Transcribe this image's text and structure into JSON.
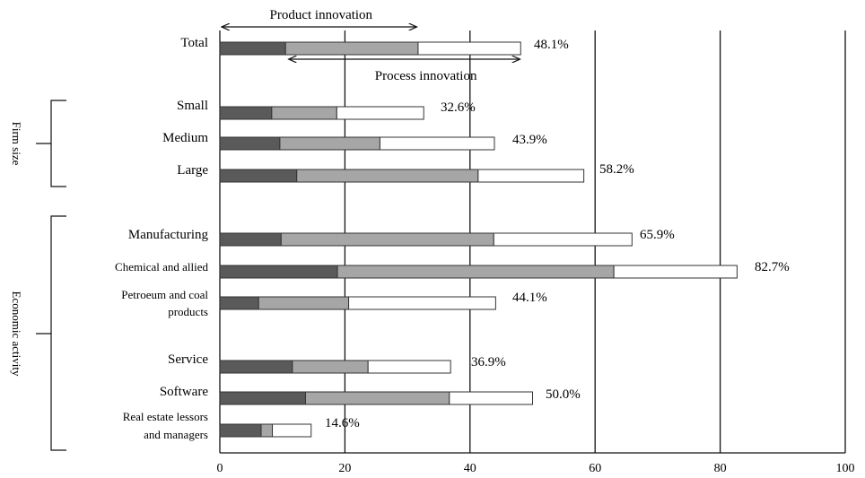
{
  "chart_data": {
    "type": "bar",
    "orientation": "horizontal",
    "stacked": true,
    "xlim": [
      0,
      100
    ],
    "x_ticks": [
      "0",
      "20",
      "40",
      "60",
      "80",
      "100"
    ],
    "grid": "vertical lines at 20, 40, 60, 80, 100",
    "colors": {
      "seg1": "#5a5a5a",
      "seg2": "#a6a6a6",
      "seg3": "#ffffff",
      "outline": "#333333"
    },
    "groups": [
      {
        "label": "Firm size",
        "members": [
          "Small",
          "Medium",
          "Large"
        ]
      },
      {
        "label": "Economic activity",
        "members": [
          "Manufacturing",
          "Chemical and allied",
          "Petroeum and coal products",
          "Service",
          "Software",
          "Real estate lessors and managers"
        ]
      }
    ],
    "annotations": {
      "product": "Product innovation",
      "process": "Process innovation",
      "product_range": [
        0,
        31.5
      ],
      "process_range": [
        11,
        48
      ]
    },
    "bars": [
      {
        "label": [
          "Total"
        ],
        "segments": [
          10.5,
          21.2,
          16.4
        ],
        "total_label": "48.1%"
      },
      {
        "label": [
          "Small"
        ],
        "segments": [
          8.3,
          10.4,
          13.9
        ],
        "total_label": "32.6%"
      },
      {
        "label": [
          "Medium"
        ],
        "segments": [
          9.6,
          16.0,
          18.3
        ],
        "total_label": "43.9%"
      },
      {
        "label": [
          "Large"
        ],
        "segments": [
          12.3,
          29.0,
          16.9
        ],
        "total_label": "58.2%"
      },
      {
        "label": [
          "Manufacturing"
        ],
        "segments": [
          9.8,
          34.0,
          22.1
        ],
        "total_label": "65.9%"
      },
      {
        "label": [
          "Chemical and allied"
        ],
        "segments": [
          18.8,
          44.2,
          19.7
        ],
        "total_label": "82.7%"
      },
      {
        "label": [
          "Petroeum and coal",
          "products"
        ],
        "segments": [
          6.2,
          14.4,
          23.5
        ],
        "total_label": "44.1%"
      },
      {
        "label": [
          "Service"
        ],
        "segments": [
          11.6,
          12.1,
          13.2
        ],
        "total_label": "36.9%"
      },
      {
        "label": [
          "Software"
        ],
        "segments": [
          13.7,
          23.0,
          13.3
        ],
        "total_label": "50.0%"
      },
      {
        "label": [
          "Real estate lessors",
          "and managers"
        ],
        "segments": [
          6.6,
          1.8,
          6.2
        ],
        "total_label": "14.6%"
      }
    ]
  }
}
